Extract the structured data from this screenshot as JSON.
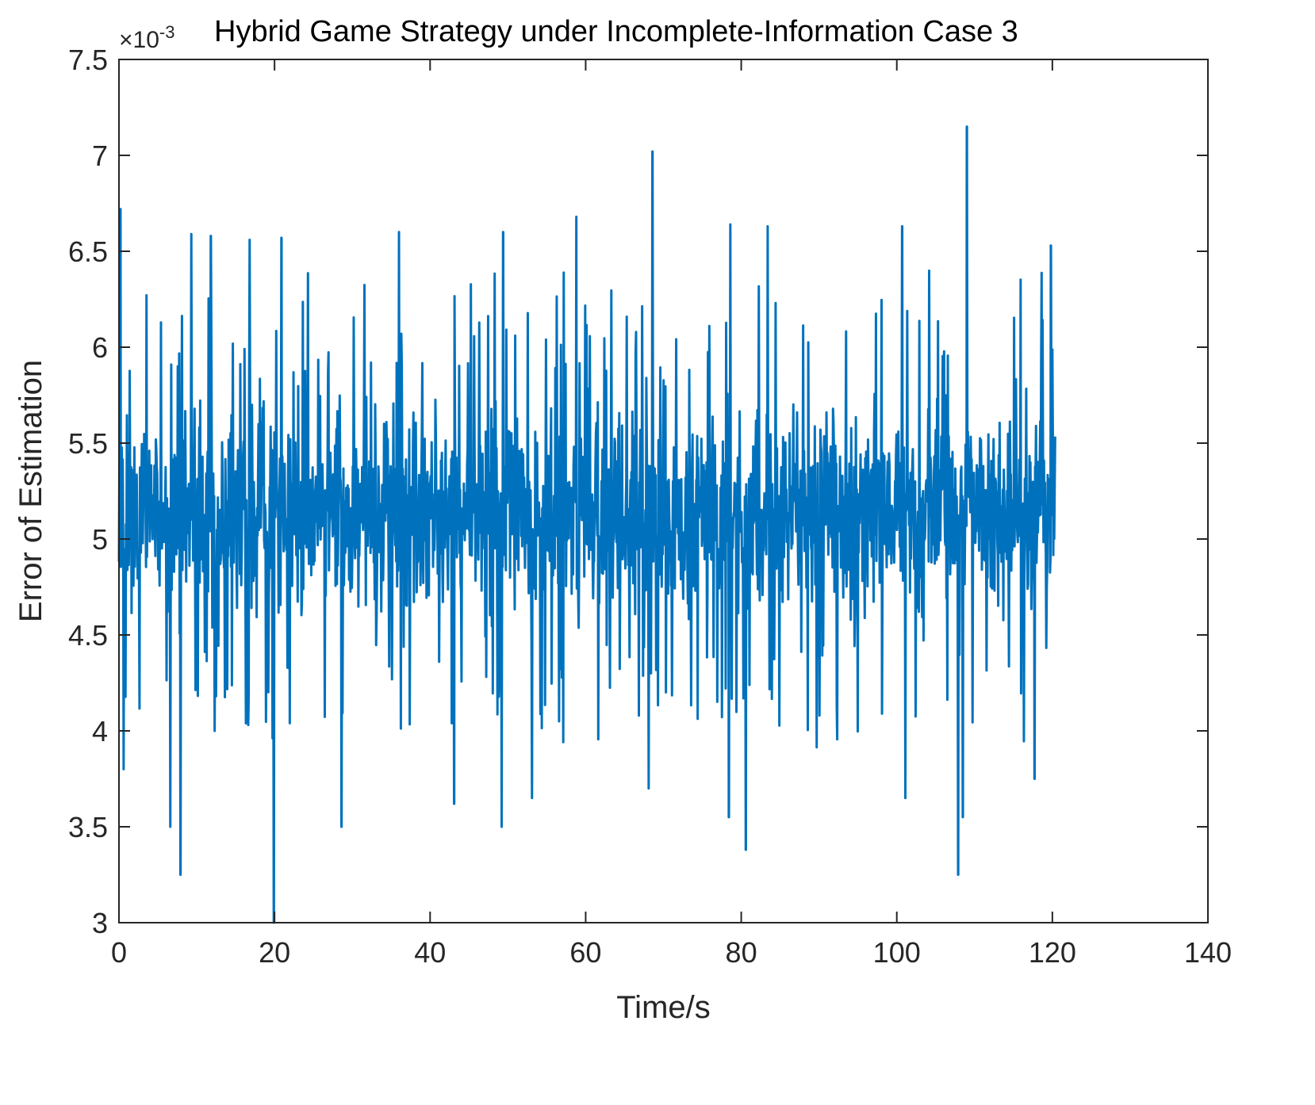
{
  "chart_data": {
    "type": "line",
    "title": "Hybrid Game Strategy under Incomplete-Information Case 3",
    "xlabel": "Time/s",
    "ylabel": "Error of Estimation",
    "y_multiplier_base": "×10",
    "y_multiplier_exponent": "-3",
    "xlim": [
      0,
      140
    ],
    "ylim": [
      3,
      7.5
    ],
    "xticks": [
      0,
      20,
      40,
      60,
      80,
      100,
      120,
      140
    ],
    "yticks": [
      3,
      3.5,
      4,
      4.5,
      5,
      5.5,
      6,
      6.5,
      7,
      7.5
    ],
    "xtick_labels": [
      "0",
      "20",
      "40",
      "60",
      "80",
      "100",
      "120",
      "140"
    ],
    "ytick_labels": [
      "3",
      "3.5",
      "4",
      "4.5",
      "5",
      "5.5",
      "6",
      "6.5",
      "7",
      "7.5"
    ],
    "grid": false,
    "box": true,
    "colors": {
      "series": "#0072BD",
      "axes": "#262626",
      "background": "#ffffff"
    },
    "series": [
      {
        "x_start": 0,
        "x_end": 120.4,
        "baseline": 5.15,
        "noise_amplitude": 0.45,
        "peaks": [
          {
            "x": 0.2,
            "y": 6.72
          },
          {
            "x": 9.3,
            "y": 6.59
          },
          {
            "x": 11.8,
            "y": 6.58
          },
          {
            "x": 16.8,
            "y": 6.56
          },
          {
            "x": 20.9,
            "y": 6.57
          },
          {
            "x": 36.0,
            "y": 6.6
          },
          {
            "x": 49.4,
            "y": 6.6
          },
          {
            "x": 58.8,
            "y": 6.68
          },
          {
            "x": 68.6,
            "y": 7.02
          },
          {
            "x": 78.6,
            "y": 6.64
          },
          {
            "x": 83.4,
            "y": 6.63
          },
          {
            "x": 100.7,
            "y": 6.63
          },
          {
            "x": 109.0,
            "y": 7.15
          },
          {
            "x": 119.8,
            "y": 6.53
          }
        ],
        "troughs": [
          {
            "x": 0.6,
            "y": 3.8
          },
          {
            "x": 7.9,
            "y": 3.25
          },
          {
            "x": 6.6,
            "y": 3.5
          },
          {
            "x": 19.9,
            "y": 3.0
          },
          {
            "x": 28.6,
            "y": 3.5
          },
          {
            "x": 43.1,
            "y": 3.62
          },
          {
            "x": 49.2,
            "y": 3.5
          },
          {
            "x": 53.1,
            "y": 3.65
          },
          {
            "x": 68.1,
            "y": 3.7
          },
          {
            "x": 78.4,
            "y": 3.55
          },
          {
            "x": 80.6,
            "y": 3.38
          },
          {
            "x": 101.1,
            "y": 3.65
          },
          {
            "x": 107.9,
            "y": 3.25
          },
          {
            "x": 108.5,
            "y": 3.55
          },
          {
            "x": 117.7,
            "y": 3.75
          }
        ]
      }
    ]
  }
}
